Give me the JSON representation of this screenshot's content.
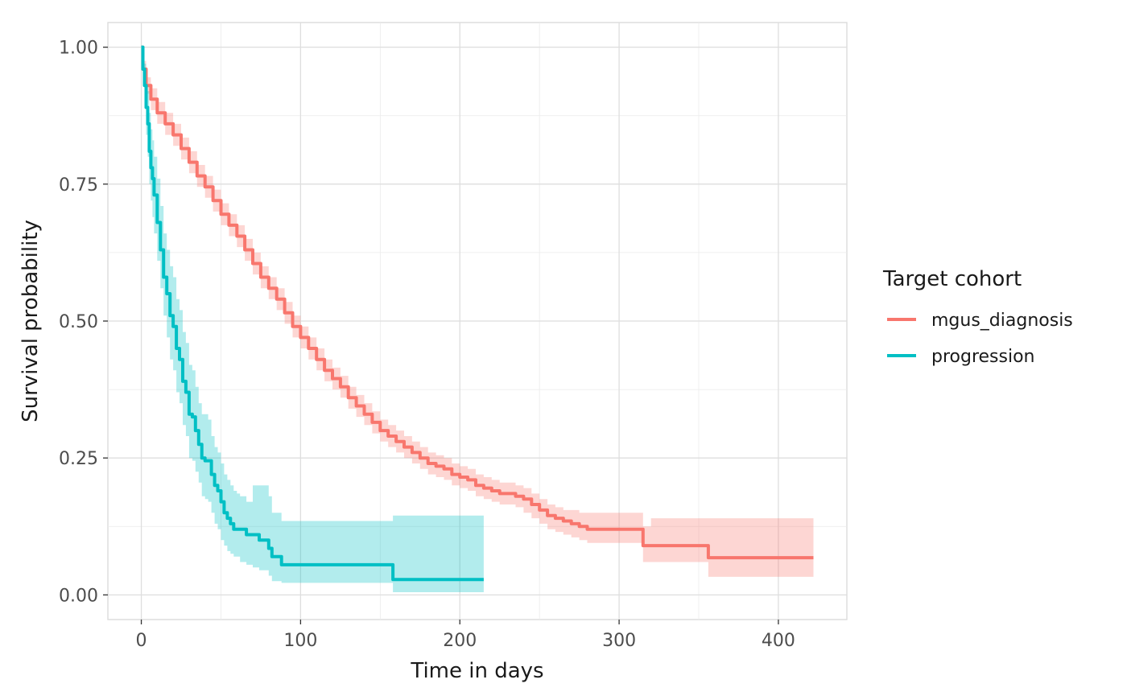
{
  "chart_data": {
    "type": "line",
    "xlabel": "Time in days",
    "ylabel": "Survival probability",
    "xlim": [
      -21,
      443
    ],
    "ylim": [
      -0.045,
      1.045
    ],
    "x_ticks": [
      0,
      100,
      200,
      300,
      400
    ],
    "y_ticks": [
      0,
      0.25,
      0.5,
      0.75,
      1.0
    ],
    "x_tick_labels": [
      "0",
      "100",
      "200",
      "300",
      "400"
    ],
    "y_tick_labels": [
      "0.00",
      "0.25",
      "0.50",
      "0.75",
      "1.00"
    ],
    "grid": true,
    "legend": {
      "title": "Target cohort",
      "position": "right",
      "entries": [
        "mgus_diagnosis",
        "progression"
      ]
    },
    "series": [
      {
        "name": "mgus_diagnosis",
        "color": "#F8766D",
        "x": [
          0,
          1,
          3,
          6,
          10,
          15,
          20,
          25,
          30,
          35,
          40,
          45,
          50,
          55,
          60,
          65,
          70,
          75,
          80,
          85,
          90,
          95,
          100,
          105,
          110,
          115,
          120,
          125,
          130,
          135,
          140,
          145,
          150,
          155,
          160,
          165,
          170,
          175,
          180,
          185,
          190,
          195,
          200,
          205,
          210,
          215,
          220,
          225,
          230,
          235,
          240,
          245,
          250,
          255,
          260,
          265,
          270,
          275,
          280,
          285,
          290,
          300,
          310,
          315,
          320,
          330,
          340,
          355,
          356,
          370,
          390,
          410,
          422
        ],
        "y": [
          1.0,
          0.96,
          0.93,
          0.905,
          0.88,
          0.86,
          0.84,
          0.815,
          0.79,
          0.765,
          0.745,
          0.72,
          0.695,
          0.675,
          0.655,
          0.63,
          0.605,
          0.58,
          0.56,
          0.54,
          0.515,
          0.49,
          0.47,
          0.45,
          0.43,
          0.41,
          0.395,
          0.38,
          0.36,
          0.345,
          0.33,
          0.315,
          0.3,
          0.29,
          0.28,
          0.27,
          0.26,
          0.25,
          0.24,
          0.235,
          0.23,
          0.22,
          0.215,
          0.21,
          0.2,
          0.195,
          0.19,
          0.185,
          0.185,
          0.18,
          0.175,
          0.165,
          0.155,
          0.145,
          0.14,
          0.135,
          0.13,
          0.125,
          0.12,
          0.12,
          0.12,
          0.12,
          0.12,
          0.09,
          0.09,
          0.09,
          0.09,
          0.09,
          0.068,
          0.068,
          0.068,
          0.068,
          0.068
        ],
        "lower": [
          1.0,
          0.945,
          0.915,
          0.885,
          0.86,
          0.84,
          0.82,
          0.795,
          0.77,
          0.745,
          0.725,
          0.7,
          0.675,
          0.655,
          0.635,
          0.61,
          0.585,
          0.56,
          0.54,
          0.52,
          0.495,
          0.47,
          0.45,
          0.43,
          0.41,
          0.39,
          0.375,
          0.36,
          0.34,
          0.325,
          0.31,
          0.295,
          0.28,
          0.27,
          0.26,
          0.25,
          0.24,
          0.23,
          0.22,
          0.215,
          0.21,
          0.2,
          0.195,
          0.19,
          0.18,
          0.175,
          0.17,
          0.165,
          0.165,
          0.16,
          0.15,
          0.14,
          0.13,
          0.12,
          0.115,
          0.11,
          0.105,
          0.1,
          0.095,
          0.095,
          0.095,
          0.095,
          0.095,
          0.06,
          0.06,
          0.06,
          0.06,
          0.06,
          0.033,
          0.033,
          0.033,
          0.033,
          0.033
        ],
        "upper": [
          1.0,
          0.975,
          0.945,
          0.925,
          0.9,
          0.88,
          0.86,
          0.835,
          0.81,
          0.785,
          0.765,
          0.74,
          0.715,
          0.695,
          0.675,
          0.65,
          0.625,
          0.6,
          0.58,
          0.56,
          0.535,
          0.51,
          0.49,
          0.47,
          0.45,
          0.43,
          0.415,
          0.4,
          0.38,
          0.365,
          0.35,
          0.335,
          0.32,
          0.31,
          0.3,
          0.29,
          0.28,
          0.27,
          0.26,
          0.255,
          0.25,
          0.24,
          0.235,
          0.23,
          0.22,
          0.215,
          0.21,
          0.205,
          0.205,
          0.2,
          0.195,
          0.185,
          0.175,
          0.165,
          0.16,
          0.155,
          0.155,
          0.15,
          0.15,
          0.15,
          0.15,
          0.15,
          0.15,
          0.125,
          0.14,
          0.14,
          0.14,
          0.14,
          0.14,
          0.14,
          0.14,
          0.14,
          0.14
        ]
      },
      {
        "name": "progression",
        "color": "#00BFC4",
        "x": [
          0,
          1,
          2,
          3,
          4,
          5,
          6,
          7,
          8,
          10,
          12,
          14,
          16,
          18,
          20,
          22,
          24,
          26,
          28,
          30,
          32,
          34,
          36,
          38,
          40,
          42,
          44,
          46,
          48,
          50,
          52,
          54,
          56,
          58,
          60,
          62,
          66,
          70,
          74,
          78,
          80,
          82,
          84,
          88,
          92,
          100,
          120,
          140,
          157,
          158,
          170,
          190,
          215
        ],
        "y": [
          1.0,
          0.96,
          0.93,
          0.89,
          0.86,
          0.81,
          0.78,
          0.76,
          0.73,
          0.68,
          0.63,
          0.58,
          0.55,
          0.51,
          0.49,
          0.45,
          0.43,
          0.39,
          0.37,
          0.33,
          0.325,
          0.3,
          0.275,
          0.25,
          0.245,
          0.245,
          0.22,
          0.2,
          0.19,
          0.17,
          0.15,
          0.14,
          0.13,
          0.12,
          0.12,
          0.12,
          0.11,
          0.11,
          0.1,
          0.1,
          0.085,
          0.07,
          0.07,
          0.055,
          0.055,
          0.055,
          0.055,
          0.055,
          0.055,
          0.028,
          0.028,
          0.028,
          0.028
        ],
        "lower": [
          1.0,
          0.93,
          0.89,
          0.84,
          0.8,
          0.75,
          0.72,
          0.69,
          0.66,
          0.61,
          0.56,
          0.51,
          0.47,
          0.43,
          0.41,
          0.37,
          0.35,
          0.31,
          0.29,
          0.25,
          0.245,
          0.225,
          0.205,
          0.18,
          0.175,
          0.17,
          0.15,
          0.13,
          0.12,
          0.1,
          0.09,
          0.08,
          0.075,
          0.07,
          0.07,
          0.06,
          0.055,
          0.05,
          0.045,
          0.045,
          0.035,
          0.025,
          0.025,
          0.022,
          0.022,
          0.022,
          0.022,
          0.022,
          0.022,
          0.005,
          0.005,
          0.005,
          0.005
        ],
        "upper": [
          1.0,
          0.985,
          0.97,
          0.94,
          0.92,
          0.88,
          0.85,
          0.83,
          0.8,
          0.76,
          0.71,
          0.66,
          0.63,
          0.6,
          0.58,
          0.54,
          0.52,
          0.48,
          0.46,
          0.42,
          0.41,
          0.38,
          0.35,
          0.33,
          0.33,
          0.32,
          0.29,
          0.27,
          0.26,
          0.24,
          0.22,
          0.21,
          0.2,
          0.19,
          0.185,
          0.18,
          0.17,
          0.2,
          0.2,
          0.2,
          0.18,
          0.15,
          0.15,
          0.135,
          0.135,
          0.135,
          0.135,
          0.135,
          0.135,
          0.145,
          0.145,
          0.145,
          0.145
        ]
      }
    ]
  }
}
